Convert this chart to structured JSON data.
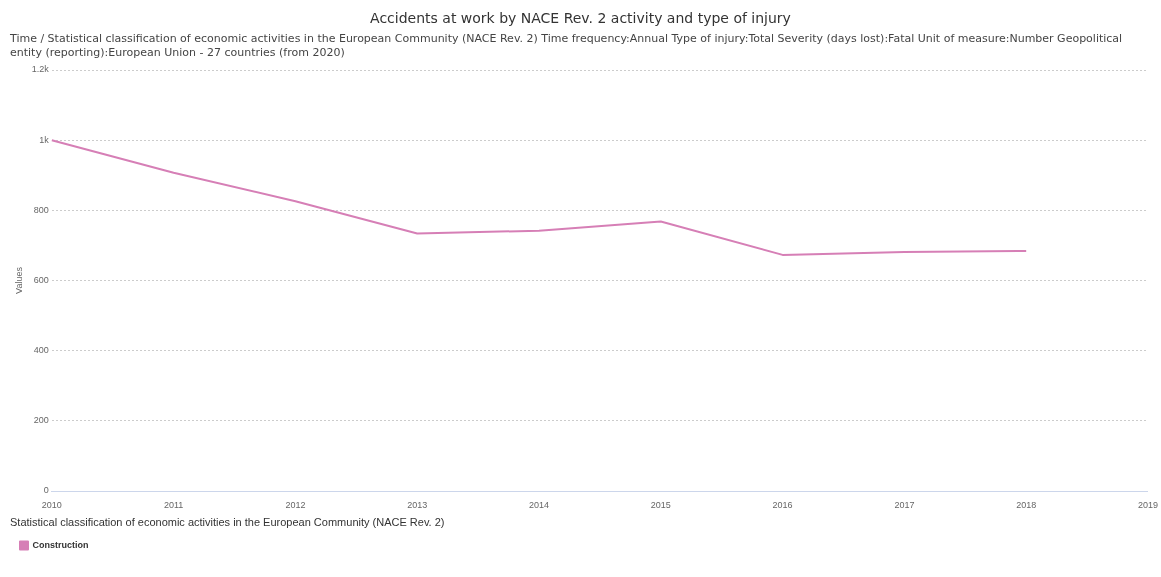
{
  "chart_data": {
    "type": "line",
    "title": "Accidents at work by NACE Rev. 2 activity and type of injury",
    "subtitle": "Time / Statistical classification of economic activities in the European Community (NACE Rev. 2)  Time frequency:Annual  Type of injury:Total  Severity (days lost):Fatal  Unit of measure:Number  Geopolitical entity (reporting):European Union - 27 countries (from 2020)",
    "categories": [
      "2010",
      "2011",
      "2012",
      "2013",
      "2014",
      "2015",
      "2016",
      "2017",
      "2018",
      "2019"
    ],
    "series": [
      {
        "name": "Construction",
        "color": "#d67fb6",
        "values": [
          1000,
          907,
          826,
          734,
          742,
          768,
          673,
          681,
          684,
          null
        ]
      }
    ],
    "ylabel": "Values",
    "legend_title": "Statistical classification of economic activities in the European Community (NACE Rev. 2)",
    "ylim": [
      0,
      1200
    ],
    "yticks": [
      0,
      200,
      400,
      600,
      800,
      {
        "value": 1000,
        "label": "1k"
      },
      {
        "value": 1200,
        "label": "1.2k"
      }
    ],
    "grid": "y",
    "legend": "bottom left",
    "marker": "none",
    "line_style": "solid"
  }
}
